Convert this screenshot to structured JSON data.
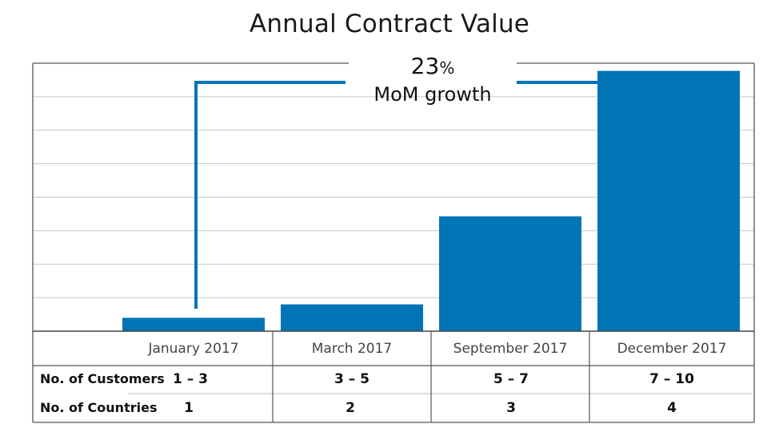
{
  "chart_data": {
    "type": "bar",
    "title": "Annual Contract Value",
    "categories": [
      "January 2017",
      "March 2017",
      "September 2017",
      "December 2017"
    ],
    "values": [
      0.35,
      0.7,
      3.0,
      6.8
    ],
    "ylim": [
      0,
      7
    ],
    "grid": true,
    "bar_color": "#0074b5",
    "annotation": {
      "value": "23",
      "unit": "%",
      "label": "MoM growth",
      "from": "January 2017",
      "to": "December 2017"
    },
    "table": {
      "rows": [
        {
          "label": "No. of Customers",
          "values": [
            "1 – 3",
            "3 – 5",
            "5 – 7",
            "7 – 10"
          ]
        },
        {
          "label": "No. of Countries",
          "values": [
            "1",
            "2",
            "3",
            "4"
          ]
        }
      ]
    }
  }
}
